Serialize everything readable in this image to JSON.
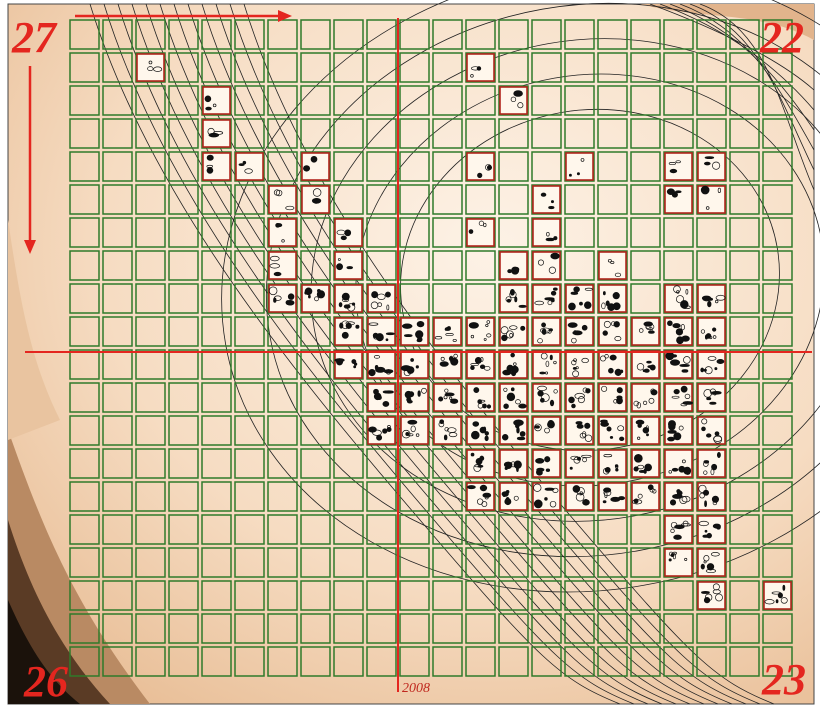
{
  "corner_labels": {
    "top_left": "27",
    "top_right": "22",
    "bottom_left": "26",
    "bottom_right": "23"
  },
  "axis_label": "2008"
}
